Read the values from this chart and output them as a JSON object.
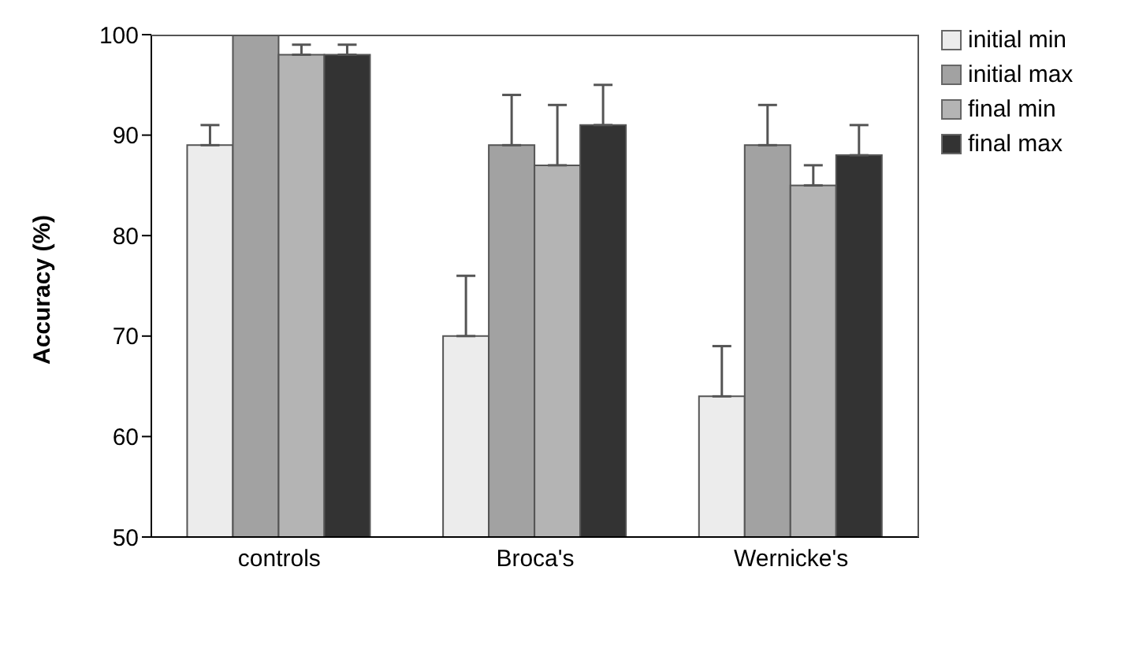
{
  "chart_data": {
    "type": "bar",
    "ylabel": "Accuracy (%)",
    "categories": [
      "controls",
      "Broca's",
      "Wernicke's"
    ],
    "series": [
      {
        "name": "initial min",
        "color": "#ececec",
        "values": [
          89,
          70,
          64
        ],
        "errors": [
          [
            89,
            91
          ],
          [
            70,
            76
          ],
          [
            64,
            69
          ]
        ]
      },
      {
        "name": "initial max",
        "color": "#a2a2a2",
        "values": [
          100,
          89,
          89
        ],
        "errors": [
          null,
          [
            89,
            94
          ],
          [
            89,
            93
          ]
        ]
      },
      {
        "name": "final min",
        "color": "#b4b4b4",
        "values": [
          98,
          87,
          85
        ],
        "errors": [
          [
            98,
            99
          ],
          [
            87,
            93
          ],
          [
            85,
            87
          ]
        ]
      },
      {
        "name": "final max",
        "color": "#333333",
        "values": [
          98,
          91,
          88
        ],
        "errors": [
          [
            98,
            99
          ],
          [
            91,
            95
          ],
          [
            88,
            91
          ]
        ]
      }
    ],
    "ylim": [
      50,
      100
    ],
    "yticks": [
      50,
      60,
      70,
      80,
      90,
      100
    ],
    "grid": false,
    "legend": "top right"
  }
}
